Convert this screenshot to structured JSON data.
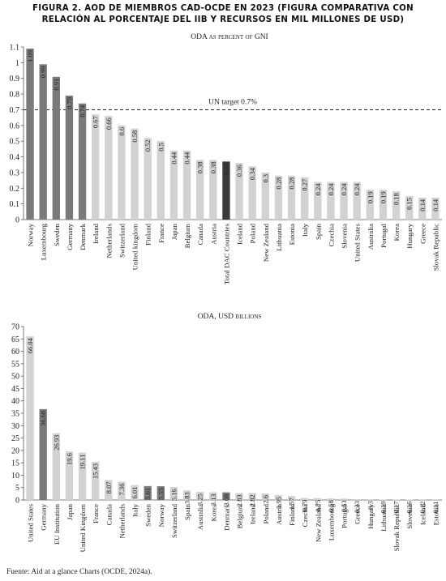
{
  "figure": {
    "title_line1": "FIGURA 2. AOD DE MIEMBROS CAD-OCDE EN 2023 (FIGURA COMPARATIVA CON",
    "title_line2": "RELACIÓN AL PORCENTAJE DEL IIB Y RECURSOS EN MIL MILLONES DE USD)",
    "source": "Fuente: Aid at a glance Charts (OCDE, 2024a)."
  },
  "colors": {
    "dark": "#7a7a7a",
    "light": "#d2d2d2",
    "highlight": "#3a3a3a",
    "axis": "#555555",
    "text": "#222222"
  },
  "chart_data": [
    {
      "type": "bar",
      "title": "ODA as percent of GNI",
      "ylim": [
        0,
        1.1
      ],
      "yticks": [
        0,
        0.1,
        0.2,
        0.3,
        0.4,
        0.5,
        0.6,
        0.7,
        0.8,
        0.9,
        1,
        1.1
      ],
      "reference_line": {
        "value": 0.7,
        "label": "UN target 0.7%"
      },
      "categories": [
        "Norway",
        "Luxembourg",
        "Sweden",
        "Germany",
        "Denmark",
        "Ireland",
        "Netherlands",
        "Switzerland",
        "United kingdom",
        "Finland",
        "France",
        "Japan",
        "Belgium",
        "Canada",
        "Austria",
        "Total DAC Countries",
        "Iceland",
        "Poland",
        "New Zealand",
        "Lithuania",
        "Estonia",
        "Italy",
        "Spain",
        "Czechia",
        "Slovenia",
        "United States",
        "Australia",
        "Portugal",
        "Korea",
        "Hungary",
        "Greece",
        "Slovak Republic"
      ],
      "values": [
        1.09,
        0.99,
        0.91,
        0.79,
        0.74,
        0.67,
        0.66,
        0.6,
        0.58,
        0.52,
        0.5,
        0.44,
        0.44,
        0.38,
        0.38,
        0.37,
        0.36,
        0.34,
        0.3,
        0.28,
        0.28,
        0.27,
        0.24,
        0.24,
        0.24,
        0.24,
        0.19,
        0.19,
        0.18,
        0.15,
        0.14,
        0.14
      ],
      "shades": [
        "dark",
        "dark",
        "dark",
        "dark",
        "dark",
        "light",
        "light",
        "light",
        "light",
        "light",
        "light",
        "light",
        "light",
        "light",
        "light",
        "highlight",
        "light",
        "light",
        "light",
        "light",
        "light",
        "light",
        "light",
        "light",
        "light",
        "light",
        "light",
        "light",
        "light",
        "light",
        "light",
        "light"
      ]
    },
    {
      "type": "bar",
      "title": "ODA, USD billions",
      "ylim": [
        0,
        70
      ],
      "yticks": [
        0,
        5,
        10,
        15,
        20,
        25,
        30,
        35,
        40,
        45,
        50,
        55,
        60,
        65,
        70
      ],
      "categories": [
        "United States",
        "Germany",
        "EU Institution",
        "Japan",
        "United Kingdom",
        "France",
        "Canada",
        "Netherlands",
        "Italy",
        "Sweden",
        "Norway",
        "Switzerland",
        "Spain",
        "Australia",
        "Korea",
        "Denmark",
        "Belgium",
        "Ireland",
        "Poland",
        "Austria",
        "Finland",
        "Czechia",
        "New Zealand",
        "Luxembourg",
        "Portugal",
        "Greece",
        "Hungary",
        "Lithuania",
        "Slovak Republic",
        "Slovenia",
        "Iceland",
        "Estonia"
      ],
      "values": [
        66.04,
        36.68,
        26.93,
        19.6,
        19.11,
        15.43,
        8.07,
        7.36,
        6.01,
        5.61,
        5.55,
        5.16,
        3.83,
        3.25,
        3.13,
        3.08,
        2.83,
        2.82,
        2.6,
        1.95,
        1.57,
        0.79,
        0.75,
        0.58,
        0.53,
        0.33,
        0.3,
        0.19,
        0.17,
        0.16,
        0.12,
        0.11
      ],
      "value_labels": [
        "66.04",
        "36.68",
        "26.93",
        "19.6",
        "19.11",
        "15.43",
        "8.07",
        "7.36",
        "6.01",
        "5.61",
        "5.55",
        "5.16",
        "3.83",
        "3.25",
        "3.13",
        "3.08",
        "2.83",
        "2.82",
        "2.6",
        "1.95",
        "1.57",
        "0.79",
        "0.75",
        "0.58",
        "0.53",
        "0.33",
        "0.3",
        "0.19",
        "0.17",
        "0.16",
        "0.12",
        "0.11"
      ],
      "shades": [
        "light",
        "dark",
        "light",
        "light",
        "light",
        "light",
        "light",
        "light",
        "light",
        "dark",
        "dark",
        "light",
        "light",
        "light",
        "light",
        "dark",
        "light",
        "light",
        "light",
        "light",
        "light",
        "light",
        "light",
        "light",
        "light",
        "light",
        "light",
        "light",
        "light",
        "light",
        "light",
        "light"
      ]
    }
  ]
}
